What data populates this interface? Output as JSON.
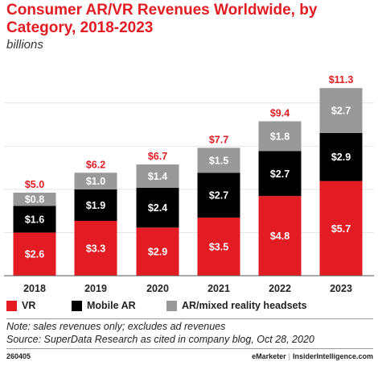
{
  "chart_data": {
    "type": "bar",
    "stacked": true,
    "title": "Consumer AR/VR Revenues Worldwide, by Category, 2018-2023",
    "subtitle": "billions",
    "categories": [
      "2018",
      "2019",
      "2020",
      "2021",
      "2022",
      "2023"
    ],
    "series": [
      {
        "name": "VR",
        "color": "#e31b23",
        "values": [
          2.6,
          3.3,
          2.9,
          3.5,
          4.8,
          5.7
        ],
        "labels": [
          "$2.6",
          "$3.3",
          "$2.9",
          "$3.5",
          "$4.8",
          "$5.7"
        ]
      },
      {
        "name": "Mobile AR",
        "color": "#000000",
        "values": [
          1.6,
          1.9,
          2.4,
          2.7,
          2.7,
          2.9
        ],
        "labels": [
          "$1.6",
          "$1.9",
          "$2.4",
          "$2.7",
          "$2.7",
          "$2.9"
        ]
      },
      {
        "name": "AR/mixed reality headsets",
        "color": "#999999",
        "values": [
          0.8,
          1.0,
          1.4,
          1.5,
          1.8,
          2.7
        ],
        "labels": [
          "$0.8",
          "$1.0",
          "$1.4",
          "$1.5",
          "$1.8",
          "$2.7"
        ]
      }
    ],
    "totals": [
      5.0,
      6.2,
      6.7,
      7.7,
      9.4,
      11.3
    ],
    "total_labels": [
      "$5.0",
      "$6.2",
      "$6.7",
      "$7.7",
      "$9.4",
      "$11.3"
    ],
    "legend_position": "bottom"
  },
  "notes": {
    "note": "Note: sales revenues only; excludes ad revenues",
    "source": "Source: SuperData Research as cited in company blog, Oct 28, 2020"
  },
  "footer": {
    "id": "260405",
    "brand_left": "eMarketer",
    "brand_right": "InsiderIntelligence.com"
  }
}
